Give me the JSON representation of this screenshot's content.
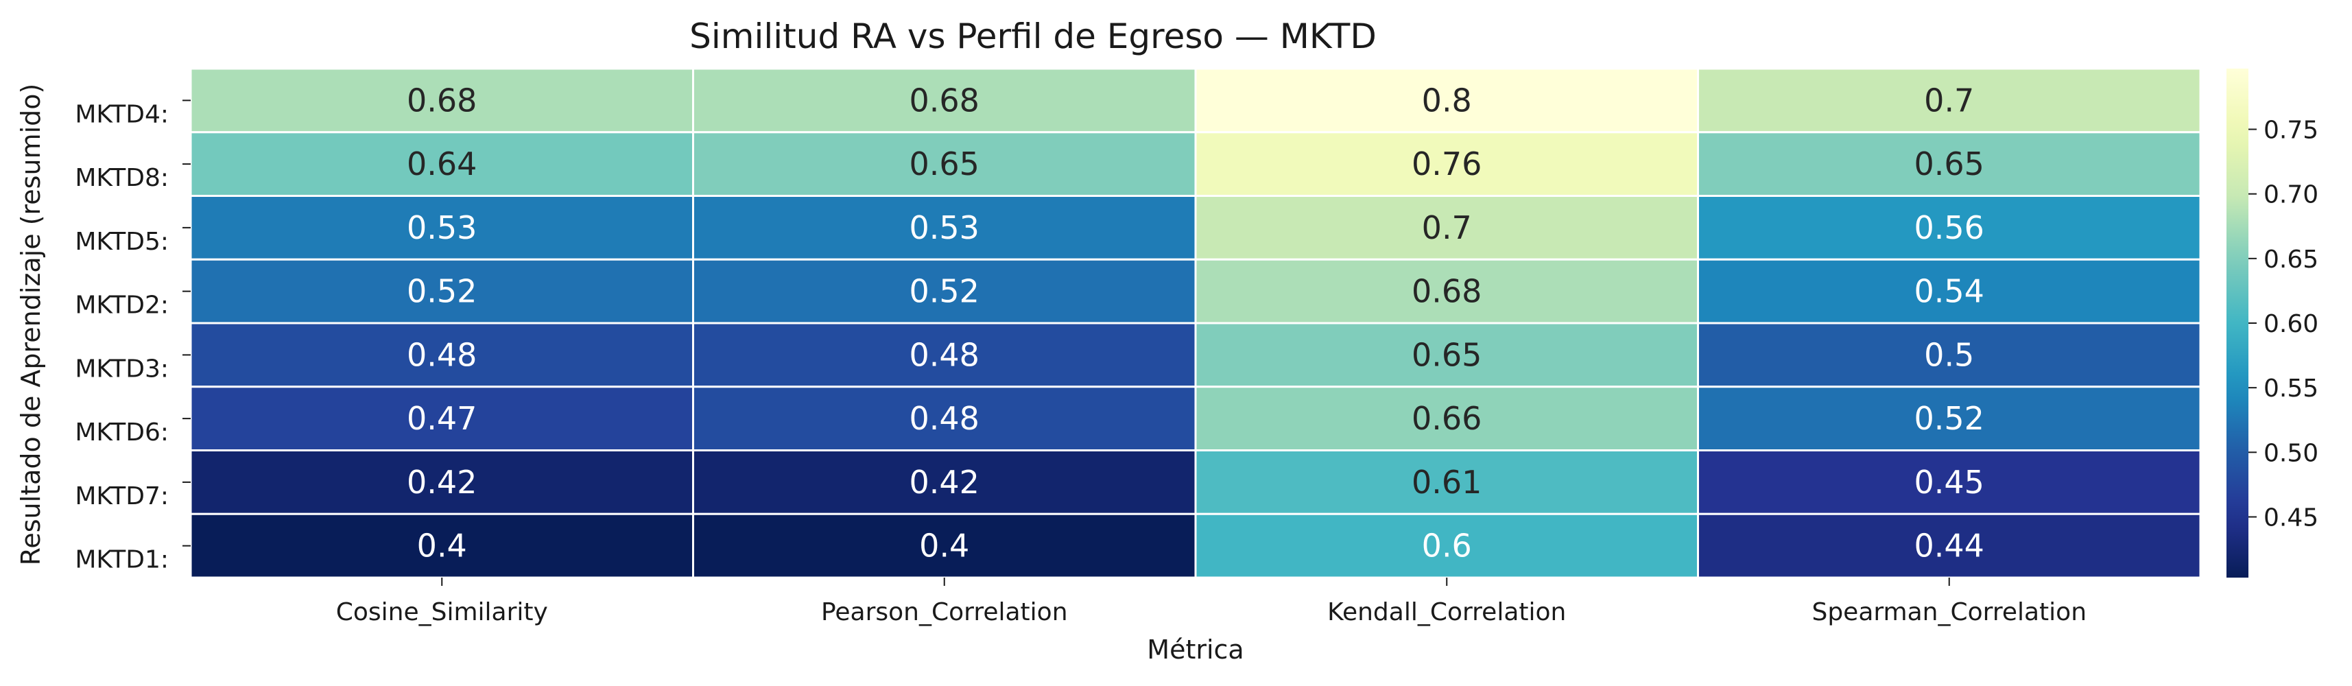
{
  "chart_data": {
    "type": "heatmap",
    "title": "Similitud RA vs Perfil de Egreso — MKTD",
    "xlabel": "Métrica",
    "ylabel": "Resultado de Aprendizaje (resumido)",
    "columns": [
      "Cosine_Similarity",
      "Pearson_Correlation",
      "Kendall_Correlation",
      "Spearman_Correlation"
    ],
    "rows": [
      "MKTD4:",
      "MKTD8:",
      "MKTD5:",
      "MKTD2:",
      "MKTD3:",
      "MKTD6:",
      "MKTD7:",
      "MKTD1:"
    ],
    "values": [
      [
        0.68,
        0.68,
        0.8,
        0.7
      ],
      [
        0.64,
        0.65,
        0.76,
        0.65
      ],
      [
        0.53,
        0.53,
        0.7,
        0.56
      ],
      [
        0.52,
        0.52,
        0.68,
        0.54
      ],
      [
        0.48,
        0.48,
        0.65,
        0.5
      ],
      [
        0.47,
        0.48,
        0.66,
        0.52
      ],
      [
        0.42,
        0.42,
        0.61,
        0.45
      ],
      [
        0.4,
        0.4,
        0.6,
        0.44
      ]
    ],
    "value_labels": [
      [
        "0.68",
        "0.68",
        "0.8",
        "0.7"
      ],
      [
        "0.64",
        "0.65",
        "0.76",
        "0.65"
      ],
      [
        "0.53",
        "0.53",
        "0.7",
        "0.56"
      ],
      [
        "0.52",
        "0.52",
        "0.68",
        "0.54"
      ],
      [
        "0.48",
        "0.48",
        "0.65",
        "0.5"
      ],
      [
        "0.47",
        "0.48",
        "0.66",
        "0.52"
      ],
      [
        "0.42",
        "0.42",
        "0.61",
        "0.45"
      ],
      [
        "0.4",
        "0.4",
        "0.6",
        "0.44"
      ]
    ],
    "colormap": "YlGnBu",
    "color_range": [
      0.403,
      0.797
    ],
    "colorbar_ticks": [
      0.45,
      0.5,
      0.55,
      0.6,
      0.65,
      0.7,
      0.75
    ],
    "colorbar_tick_labels": [
      "0.45",
      "0.50",
      "0.55",
      "0.60",
      "0.65",
      "0.70",
      "0.75"
    ],
    "grid_line_color": "#ffffff"
  }
}
